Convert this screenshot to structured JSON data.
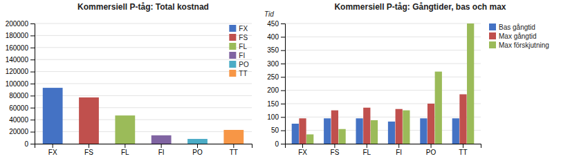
{
  "chart_data": [
    {
      "type": "bar",
      "title": "Kommersiell P-tåg: Total kostnad",
      "categories": [
        "FX",
        "FS",
        "FL",
        "FI",
        "PO",
        "TT"
      ],
      "values": [
        93000,
        77000,
        47000,
        14000,
        8000,
        23000
      ],
      "colors": [
        "#4472C4",
        "#C0504D",
        "#9BBB59",
        "#8064A2",
        "#4BACC6",
        "#F79646"
      ],
      "ylim": [
        0,
        200000
      ],
      "yticks": [
        0,
        20000,
        40000,
        60000,
        80000,
        100000,
        120000,
        140000,
        160000,
        180000,
        200000
      ],
      "grid": true,
      "legend": "upper-right"
    },
    {
      "type": "bar",
      "title": "Kommersiell P-tåg: Gångtider, bas och max",
      "ylabel": "Tid",
      "categories": [
        "FX",
        "FS",
        "FL",
        "FI",
        "PO",
        "TT"
      ],
      "series": [
        {
          "name": "Bas gångtid",
          "color": "#4472C4",
          "values": [
            75,
            95,
            95,
            83,
            95,
            95
          ]
        },
        {
          "name": "Max gångtid",
          "color": "#C0504D",
          "values": [
            95,
            125,
            135,
            130,
            150,
            185
          ]
        },
        {
          "name": "Max förskjutning",
          "color": "#9BBB59",
          "values": [
            35,
            55,
            88,
            125,
            270,
            450
          ]
        }
      ],
      "ylim": [
        0,
        450
      ],
      "yticks": [
        0,
        50,
        100,
        150,
        200,
        250,
        300,
        350,
        400,
        450
      ],
      "grid": true,
      "legend": "right"
    }
  ]
}
